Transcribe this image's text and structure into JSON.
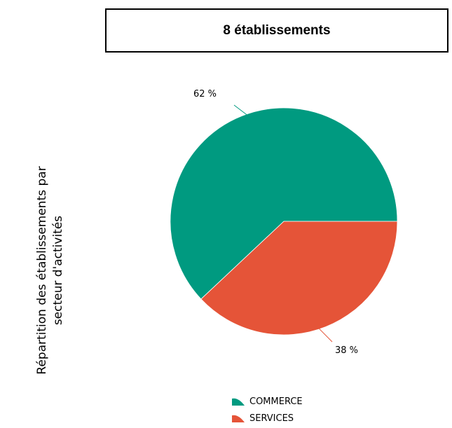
{
  "header": {
    "title": "8 établissements"
  },
  "side_title": {
    "line1": "Répartition des établissements par",
    "line2": "secteur d'activités"
  },
  "chart_data": {
    "type": "pie",
    "title": "8 établissements",
    "categories": [
      "COMMERCE",
      "SERVICES"
    ],
    "values": [
      62,
      38
    ],
    "labels": [
      "62 %",
      "38 %"
    ],
    "colors": [
      "#009a80",
      "#e55438"
    ],
    "legend_position": "bottom"
  }
}
